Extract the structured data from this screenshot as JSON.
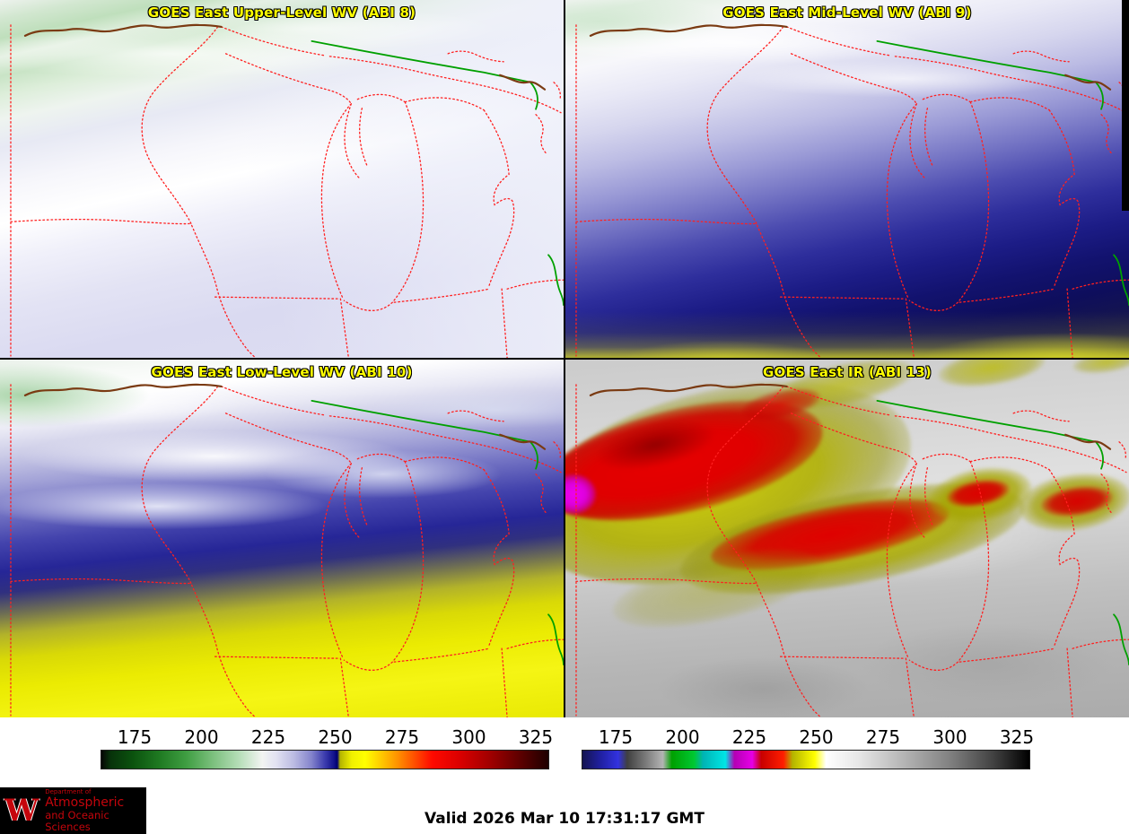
{
  "panels": [
    {
      "id": "abi8",
      "title": "GOES East Upper-Level WV (ABI 8)"
    },
    {
      "id": "abi9",
      "title": "GOES East Mid-Level WV (ABI 9)"
    },
    {
      "id": "abi10",
      "title": "GOES East Low-Level WV (ABI 10)"
    },
    {
      "id": "abi13",
      "title": "GOES East IR (ABI 13)"
    }
  ],
  "colorbars": {
    "wv": {
      "ticks": [
        "175",
        "200",
        "225",
        "250",
        "275",
        "300",
        "325"
      ],
      "stops": [
        {
          "p": 0,
          "c": "#050505"
        },
        {
          "p": 2,
          "c": "#07320a"
        },
        {
          "p": 7,
          "c": "#0b520e"
        },
        {
          "p": 13,
          "c": "#1f7a22"
        },
        {
          "p": 19,
          "c": "#3f9e42"
        },
        {
          "p": 25,
          "c": "#7cc07e"
        },
        {
          "p": 31,
          "c": "#b8dfba"
        },
        {
          "p": 36,
          "c": "#f2f4f2"
        },
        {
          "p": 39,
          "c": "#e2e2f2"
        },
        {
          "p": 43,
          "c": "#bcbce2"
        },
        {
          "p": 47,
          "c": "#8484cc"
        },
        {
          "p": 50,
          "c": "#3c3cae"
        },
        {
          "p": 52,
          "c": "#12128c"
        },
        {
          "p": 52.8,
          "c": "#00006e"
        },
        {
          "p": 53.4,
          "c": "#b4b400"
        },
        {
          "p": 56,
          "c": "#f0f000"
        },
        {
          "p": 59,
          "c": "#ffff00"
        },
        {
          "p": 62,
          "c": "#ffd200"
        },
        {
          "p": 66,
          "c": "#ff9600"
        },
        {
          "p": 70,
          "c": "#ff5000"
        },
        {
          "p": 74,
          "c": "#ff0a00"
        },
        {
          "p": 80,
          "c": "#dc0000"
        },
        {
          "p": 87,
          "c": "#a00000"
        },
        {
          "p": 93,
          "c": "#640000"
        },
        {
          "p": 100,
          "c": "#1e0000"
        }
      ]
    },
    "ir": {
      "ticks": [
        "175",
        "200",
        "225",
        "250",
        "275",
        "300",
        "325"
      ],
      "stops": [
        {
          "p": 0,
          "c": "#141450"
        },
        {
          "p": 4,
          "c": "#2020a0"
        },
        {
          "p": 8,
          "c": "#3232e0"
        },
        {
          "p": 10,
          "c": "#404040"
        },
        {
          "p": 14,
          "c": "#787878"
        },
        {
          "p": 18,
          "c": "#b4b4b4"
        },
        {
          "p": 20,
          "c": "#00a000"
        },
        {
          "p": 25,
          "c": "#00c832"
        },
        {
          "p": 27,
          "c": "#00b4b4"
        },
        {
          "p": 32,
          "c": "#00e6e6"
        },
        {
          "p": 34,
          "c": "#b400b4"
        },
        {
          "p": 38,
          "c": "#e600e6"
        },
        {
          "p": 40,
          "c": "#c80000"
        },
        {
          "p": 45,
          "c": "#ff1e00"
        },
        {
          "p": 47,
          "c": "#b4b400"
        },
        {
          "p": 52,
          "c": "#ffff00"
        },
        {
          "p": 54.5,
          "c": "#ffffff"
        },
        {
          "p": 62,
          "c": "#e6e6e6"
        },
        {
          "p": 72,
          "c": "#b4b4b4"
        },
        {
          "p": 82,
          "c": "#828282"
        },
        {
          "p": 92,
          "c": "#414141"
        },
        {
          "p": 100,
          "c": "#000000"
        }
      ]
    }
  },
  "footer": {
    "valid_text": "Valid 2026 Mar 10 17:31:17 GMT",
    "logo": {
      "w": "W",
      "dept": "Department of",
      "line1": "Atmospheric",
      "line2": "and Oceanic Sciences"
    }
  },
  "colors": {
    "title_text": "#ffff00",
    "title_outline": "#000000",
    "state_border": "#ff2020",
    "river_green": "#00a000",
    "border_brown": "#7a3a12",
    "logo_red": "#c5050c"
  }
}
